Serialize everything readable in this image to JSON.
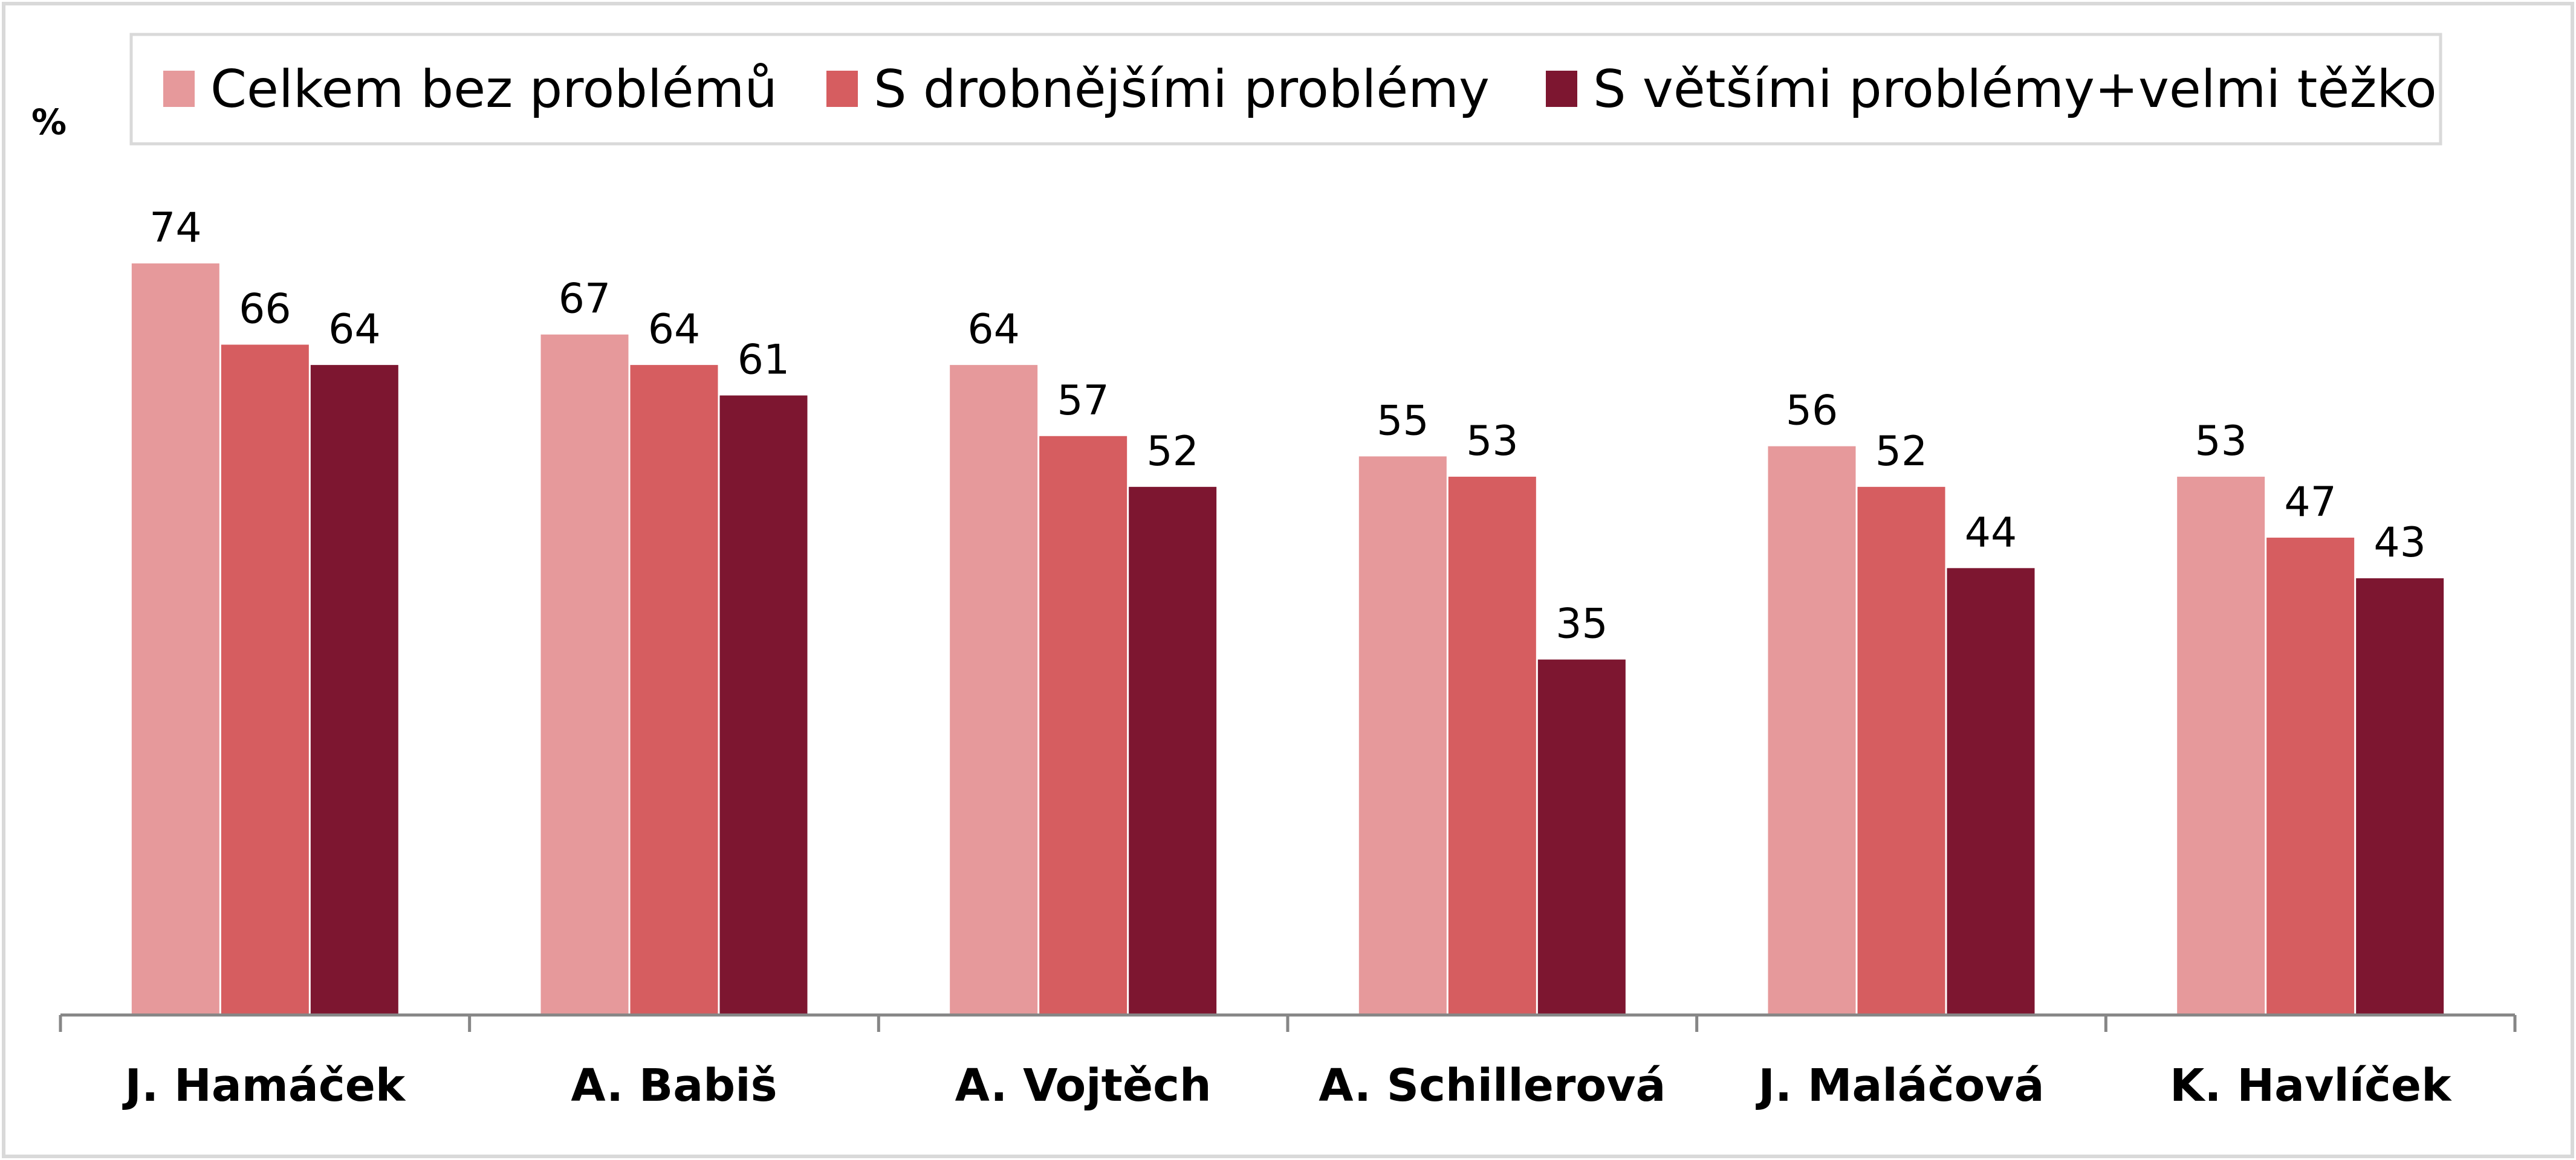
{
  "chart_data": {
    "type": "bar",
    "unit_label": "%",
    "categories": [
      "J. Hamáček",
      "A. Babiš",
      "A. Vojtěch",
      "A. Schillerová",
      "J. Maláčová",
      "K. Havlíček"
    ],
    "series": [
      {
        "name": "Celkem bez problémů",
        "color": "#e6999b",
        "values": [
          74,
          67,
          64,
          55,
          56,
          53
        ]
      },
      {
        "name": "S drobnějšími problémy",
        "color": "#d65d60",
        "values": [
          66,
          64,
          57,
          53,
          52,
          47
        ]
      },
      {
        "name": "S většími problémy+velmi těžko",
        "color": "#7d1630",
        "values": [
          64,
          61,
          52,
          35,
          44,
          43
        ]
      }
    ],
    "ylim": [
      0,
      100
    ],
    "grid": false,
    "legend_position": "top"
  }
}
